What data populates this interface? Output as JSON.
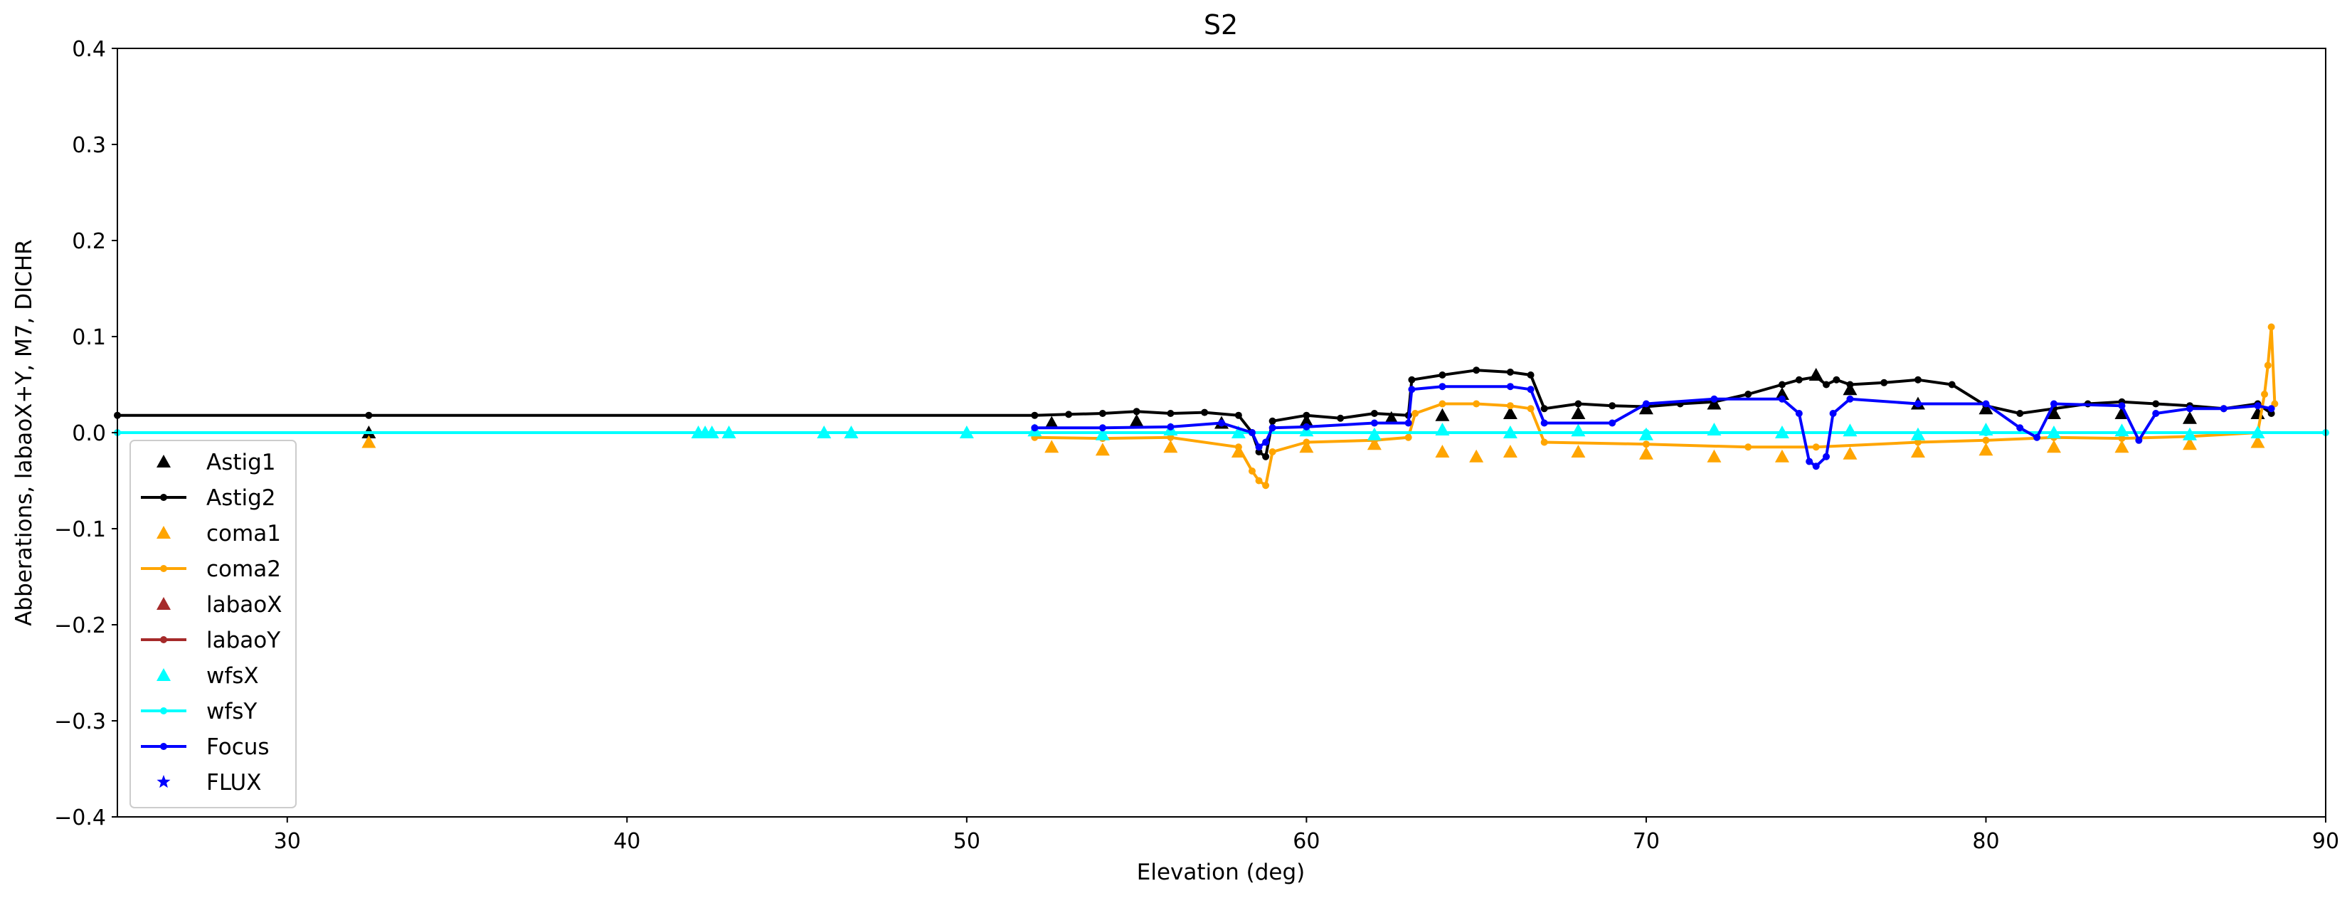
{
  "chart_data": {
    "type": "scatter",
    "title": "S2",
    "xlabel": "Elevation (deg)",
    "ylabel": "Abberations, labaoX+Y, M7, DICHR",
    "xlim": [
      25,
      90
    ],
    "ylim": [
      -0.4,
      0.4
    ],
    "xticks": [
      30,
      40,
      50,
      60,
      70,
      80,
      90
    ],
    "yticks": [
      -0.4,
      -0.3,
      -0.2,
      -0.1,
      0.0,
      0.1,
      0.2,
      0.3,
      0.4
    ],
    "yticklabels": [
      "−0.4",
      "−0.3",
      "−0.2",
      "−0.1",
      "0.0",
      "0.1",
      "0.2",
      "0.3",
      "0.4"
    ],
    "grid": false,
    "legend_position": "lower-left",
    "series": [
      {
        "name": "Astig1",
        "color": "#000000",
        "marker": "triangle",
        "line": false,
        "x": [
          32.4,
          52.5,
          55.0,
          57.5,
          60.0,
          62.5,
          64.0,
          66.0,
          68.0,
          70.0,
          72.0,
          74.0,
          75.0,
          76.0,
          78.0,
          80.0,
          82.0,
          84.0,
          86.0,
          88.0
        ],
        "y": [
          0.0,
          0.01,
          0.012,
          0.01,
          0.012,
          0.015,
          0.018,
          0.02,
          0.02,
          0.025,
          0.03,
          0.04,
          0.06,
          0.045,
          0.03,
          0.025,
          0.02,
          0.02,
          0.015,
          0.02
        ]
      },
      {
        "name": "Astig2",
        "color": "#000000",
        "marker": "dot",
        "line": true,
        "x": [
          25.0,
          32.4,
          52.0,
          53.0,
          54.0,
          55.0,
          56.0,
          57.0,
          58.0,
          58.4,
          58.6,
          58.8,
          59.0,
          60.0,
          61.0,
          62.0,
          63.0,
          63.1,
          64.0,
          65.0,
          66.0,
          66.6,
          67.0,
          68.0,
          69.0,
          70.0,
          71.0,
          72.0,
          73.0,
          74.0,
          74.5,
          75.0,
          75.3,
          75.6,
          76.0,
          77.0,
          78.0,
          79.0,
          80.0,
          81.0,
          82.0,
          83.0,
          84.0,
          85.0,
          86.0,
          87.0,
          88.0,
          88.4
        ],
        "y": [
          0.018,
          0.018,
          0.018,
          0.019,
          0.02,
          0.022,
          0.02,
          0.021,
          0.018,
          0.0,
          -0.02,
          -0.025,
          0.012,
          0.018,
          0.015,
          0.02,
          0.018,
          0.055,
          0.06,
          0.065,
          0.063,
          0.06,
          0.025,
          0.03,
          0.028,
          0.027,
          0.03,
          0.032,
          0.04,
          0.05,
          0.055,
          0.058,
          0.05,
          0.055,
          0.05,
          0.052,
          0.055,
          0.05,
          0.028,
          0.02,
          0.025,
          0.03,
          0.032,
          0.03,
          0.028,
          0.025,
          0.03,
          0.02
        ]
      },
      {
        "name": "coma1",
        "color": "#ffa500",
        "marker": "triangle",
        "line": false,
        "x": [
          32.4,
          52.5,
          54.0,
          56.0,
          58.0,
          60.0,
          62.0,
          64.0,
          65.0,
          66.0,
          68.0,
          70.0,
          72.0,
          74.0,
          76.0,
          78.0,
          80.0,
          82.0,
          84.0,
          86.0,
          88.0
        ],
        "y": [
          -0.01,
          -0.015,
          -0.018,
          -0.015,
          -0.02,
          -0.015,
          -0.012,
          -0.02,
          -0.025,
          -0.02,
          -0.02,
          -0.022,
          -0.025,
          -0.025,
          -0.022,
          -0.02,
          -0.018,
          -0.015,
          -0.015,
          -0.012,
          -0.01
        ]
      },
      {
        "name": "coma2",
        "color": "#ffa500",
        "marker": "dot",
        "line": true,
        "x": [
          52.0,
          54.0,
          56.0,
          58.0,
          58.4,
          58.6,
          58.8,
          59.0,
          60.0,
          62.0,
          63.0,
          63.2,
          64.0,
          65.0,
          66.0,
          66.6,
          67.0,
          70.0,
          73.0,
          75.0,
          78.0,
          80.0,
          82.0,
          84.0,
          86.0,
          88.0,
          88.2,
          88.3,
          88.4,
          88.5
        ],
        "y": [
          -0.005,
          -0.006,
          -0.005,
          -0.015,
          -0.04,
          -0.05,
          -0.055,
          -0.02,
          -0.01,
          -0.008,
          -0.005,
          0.02,
          0.03,
          0.03,
          0.028,
          0.025,
          -0.01,
          -0.012,
          -0.015,
          -0.015,
          -0.01,
          -0.008,
          -0.005,
          -0.006,
          -0.004,
          0.0,
          0.04,
          0.07,
          0.11,
          0.03
        ]
      },
      {
        "name": "labaoX",
        "color": "#a52a2a",
        "marker": "triangle",
        "line": false,
        "x": [],
        "y": []
      },
      {
        "name": "labaoY",
        "color": "#a52a2a",
        "marker": "dot",
        "line": true,
        "x": [],
        "y": []
      },
      {
        "name": "wfsX",
        "color": "#00ffff",
        "marker": "triangle",
        "line": false,
        "x": [
          42.1,
          42.3,
          42.5,
          43.0,
          45.8,
          46.6,
          50.0,
          52.0,
          54.0,
          56.0,
          58.0,
          60.0,
          62.0,
          64.0,
          66.0,
          68.0,
          70.0,
          72.0,
          74.0,
          76.0,
          78.0,
          80.0,
          82.0,
          84.0,
          86.0,
          88.0
        ],
        "y": [
          0.0,
          0.0,
          0.0,
          0.0,
          0.0,
          0.0,
          0.0,
          0.002,
          -0.002,
          0.003,
          0.0,
          0.002,
          -0.002,
          0.003,
          0.0,
          0.002,
          -0.002,
          0.003,
          0.0,
          0.002,
          -0.002,
          0.003,
          0.0,
          0.002,
          -0.002,
          0.0
        ]
      },
      {
        "name": "wfsY",
        "color": "#00ffff",
        "marker": "dot",
        "line": true,
        "x": [
          25.0,
          52.0,
          60.0,
          70.0,
          80.0,
          88.0,
          90.0
        ],
        "y": [
          0.0,
          0.0,
          0.0,
          0.0,
          0.0,
          0.0,
          0.0
        ]
      },
      {
        "name": "Focus",
        "color": "#0000ff",
        "marker": "dot",
        "line": true,
        "x": [
          52.0,
          54.0,
          56.0,
          57.5,
          58.4,
          58.6,
          58.8,
          59.0,
          60.0,
          62.0,
          63.0,
          63.1,
          64.0,
          66.0,
          66.6,
          67.0,
          69.0,
          70.0,
          72.0,
          74.0,
          74.5,
          74.8,
          75.0,
          75.3,
          75.5,
          76.0,
          78.0,
          80.0,
          81.0,
          81.5,
          82.0,
          84.0,
          84.5,
          85.0,
          86.0,
          87.0,
          88.0,
          88.4
        ],
        "y": [
          0.005,
          0.005,
          0.006,
          0.01,
          0.0,
          -0.015,
          -0.01,
          0.005,
          0.006,
          0.01,
          0.01,
          0.045,
          0.048,
          0.048,
          0.045,
          0.01,
          0.01,
          0.03,
          0.035,
          0.035,
          0.02,
          -0.03,
          -0.035,
          -0.025,
          0.02,
          0.035,
          0.03,
          0.03,
          0.005,
          -0.005,
          0.03,
          0.028,
          -0.008,
          0.02,
          0.025,
          0.025,
          0.028,
          0.025
        ]
      },
      {
        "name": "FLUX",
        "color": "#0000ff",
        "marker": "star",
        "line": false,
        "x": [],
        "y": []
      }
    ]
  }
}
